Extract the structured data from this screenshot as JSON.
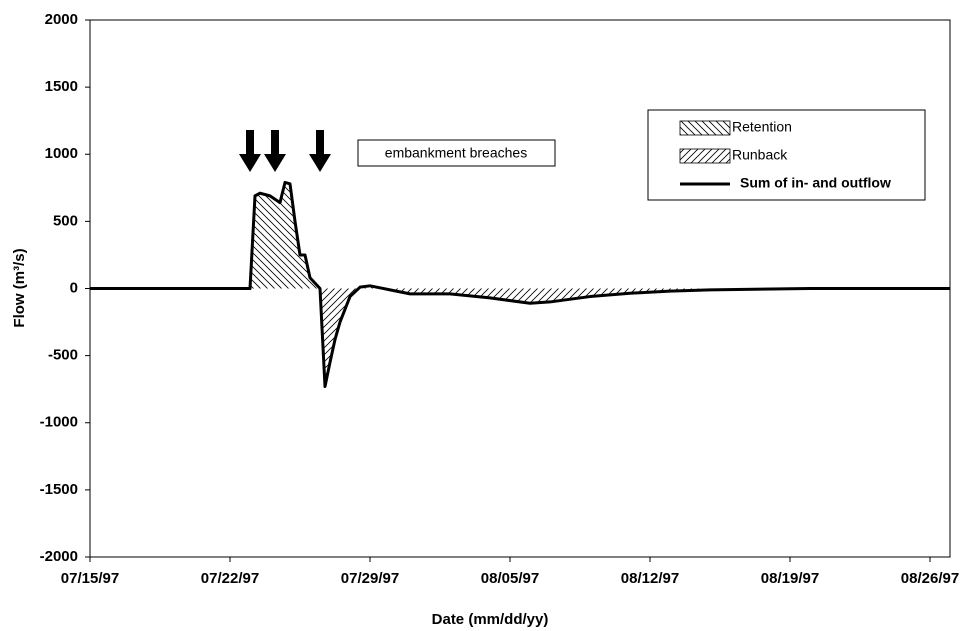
{
  "chart_data": {
    "type": "line",
    "x_label": "Date  (mm/dd/yy)",
    "y_label": "Flow  (m³/s)",
    "annotation": "embankment breaches",
    "x": [
      "07/15/97 00:00",
      "07/23/97 00:00",
      "07/23/97 06:00",
      "07/23/97 12:00",
      "07/24/97 00:00",
      "07/24/97 12:00",
      "07/24/97 18:00",
      "07/25/97 00:00",
      "07/25/97 06:00",
      "07/25/97 12:00",
      "07/25/97 18:00",
      "07/26/97 00:00",
      "07/26/97 12:00",
      "07/26/97 18:00",
      "07/27/97 00:00",
      "07/27/97 06:00",
      "07/27/97 12:00",
      "07/28/97 00:00",
      "07/28/97 12:00",
      "07/29/97 00:00",
      "07/30/97 00:00",
      "07/31/97 00:00",
      "08/02/97 00:00",
      "08/04/97 00:00",
      "08/06/97 00:00",
      "08/07/97 00:00",
      "08/09/97 00:00",
      "08/11/97 00:00",
      "08/13/97 00:00",
      "08/15/97 00:00",
      "08/20/97 00:00",
      "08/27/97 00:00"
    ],
    "series": [
      {
        "name": "Sum of in- and outflow",
        "color": "#000000",
        "values": [
          0,
          0,
          690,
          710,
          690,
          640,
          790,
          780,
          500,
          250,
          250,
          80,
          0,
          -730,
          -550,
          -380,
          -250,
          -60,
          10,
          20,
          -10,
          -40,
          -40,
          -70,
          -110,
          -100,
          -60,
          -35,
          -20,
          -10,
          0,
          0
        ]
      }
    ],
    "areas": [
      {
        "name": "Retention",
        "side": "positive",
        "pattern": "backslash"
      },
      {
        "name": "Runback",
        "side": "negative",
        "pattern": "slash"
      }
    ],
    "xlim": [
      "07/15/97",
      "08/27/97"
    ],
    "xticks": [
      "07/15/97",
      "07/22/97",
      "07/29/97",
      "08/05/97",
      "08/12/97",
      "08/19/97",
      "08/26/97"
    ],
    "ylim": [
      -2000,
      2000
    ],
    "yticks": [
      2000,
      1500,
      1000,
      500,
      0,
      -500,
      -1000,
      -1500,
      -2000
    ],
    "legend": "upper right"
  }
}
